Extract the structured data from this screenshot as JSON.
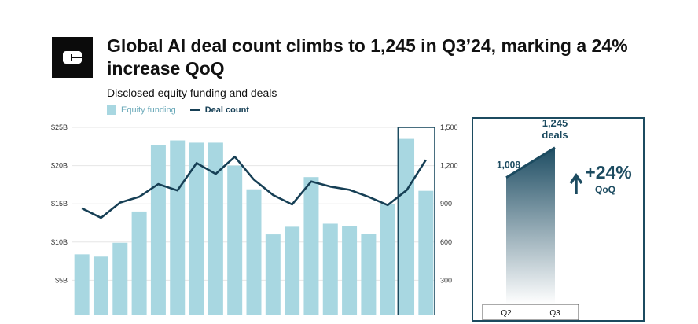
{
  "header": {
    "title": "Global AI deal count climbs to 1,245 in Q3’24, marking a 24% increase QoQ",
    "subtitle": "Disclosed equity funding and deals"
  },
  "legend": {
    "equity_funding": "Equity funding",
    "deal_count": "Deal count"
  },
  "colors": {
    "bar": "#a8d7e1",
    "line": "#163f55",
    "highlight": "#1c4b60"
  },
  "chart_data": [
    {
      "type": "bar",
      "series": [
        {
          "name": "Equity funding",
          "values": [
            8.4,
            8.1,
            9.9,
            14.0,
            22.7,
            23.3,
            23.0,
            23.0,
            20.0,
            16.9,
            11.0,
            12.0,
            18.5,
            12.4,
            12.1,
            11.1,
            15.0,
            23.5,
            16.7
          ]
        },
        {
          "name": "Deal count",
          "values": [
            865,
            790,
            910,
            955,
            1055,
            1005,
            1220,
            1135,
            1270,
            1090,
            970,
            895,
            1075,
            1035,
            1010,
            955,
            890,
            1008,
            1245
          ]
        }
      ],
      "y_left_ticks": [
        "$25B",
        "$20B",
        "$15B",
        "$10B",
        "$5B"
      ],
      "y_left_values": [
        25,
        20,
        15,
        10,
        5
      ],
      "y_right_ticks": [
        "1,500",
        "1,200",
        "900",
        "600",
        "300"
      ],
      "y_right_values": [
        1500,
        1200,
        900,
        600,
        300
      ],
      "ylim_left": [
        0,
        25
      ],
      "ylim_right": [
        0,
        1500
      ],
      "highlight_index": 17
    },
    {
      "type": "area",
      "categories": [
        "Q2",
        "Q3"
      ],
      "values": [
        1008,
        1245
      ],
      "value_labels": [
        "1,008",
        "1,245"
      ],
      "value_sub_label": "deals",
      "change_label": "+24%",
      "change_sub_label": "QoQ"
    }
  ]
}
